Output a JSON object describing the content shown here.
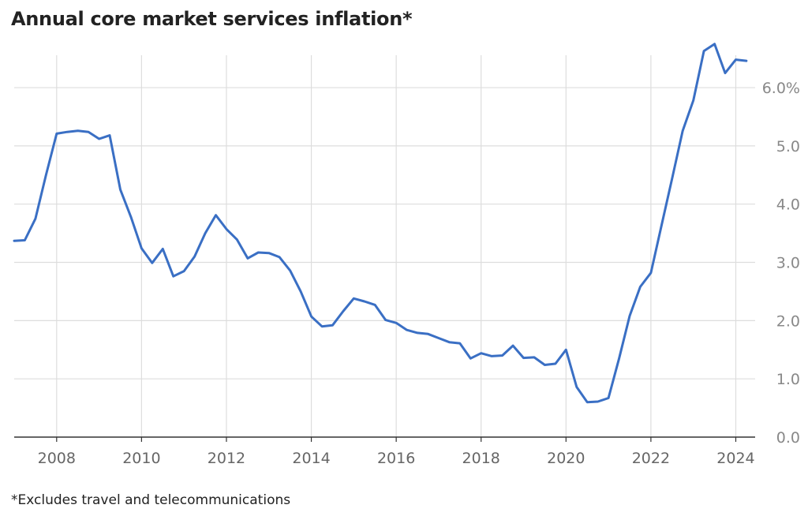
{
  "chart_data": {
    "type": "line",
    "title": "Annual core market services inflation*",
    "footnote": "*Excludes travel and telecommunications",
    "xlabel": "",
    "ylabel": "",
    "x_ticks": [
      "2008",
      "2010",
      "2012",
      "2014",
      "2016",
      "2018",
      "2020",
      "2022",
      "2024"
    ],
    "y_ticks": [
      "0.0",
      "1.0",
      "2.0",
      "3.0",
      "4.0",
      "5.0",
      "6.0%"
    ],
    "y_tick_values": [
      0,
      1,
      2,
      3,
      4,
      5,
      6
    ],
    "xlim": [
      2007.0,
      2024.4
    ],
    "ylim": [
      0,
      6.8
    ],
    "grid": true,
    "line_color": "#3a6fc4",
    "series": [
      {
        "x": [
          2007.0,
          2007.25,
          2007.5,
          2007.75,
          2008.0,
          2008.25,
          2008.5,
          2008.75,
          2009.0,
          2009.25,
          2009.5,
          2009.75,
          2010.0,
          2010.25,
          2010.5,
          2010.75,
          2011.0,
          2011.25,
          2011.5,
          2011.75,
          2012.0,
          2012.25,
          2012.5,
          2012.75,
          2013.0,
          2013.25,
          2013.5,
          2013.75,
          2014.0,
          2014.25,
          2014.5,
          2014.75,
          2015.0,
          2015.25,
          2015.5,
          2015.75,
          2016.0,
          2016.25,
          2016.5,
          2016.75,
          2017.0,
          2017.25,
          2017.5,
          2017.75,
          2018.0,
          2018.25,
          2018.5,
          2018.75,
          2019.0,
          2019.25,
          2019.5,
          2019.75,
          2020.0,
          2020.25,
          2020.5,
          2020.75,
          2021.0,
          2021.25,
          2021.5,
          2021.75,
          2022.0,
          2022.25,
          2022.5,
          2022.75,
          2023.0,
          2023.25,
          2023.5,
          2023.75,
          2024.0,
          2024.25
        ],
        "values": [
          3.37,
          3.38,
          3.75,
          4.5,
          5.21,
          5.24,
          5.26,
          5.24,
          5.12,
          5.18,
          4.25,
          3.78,
          3.24,
          2.99,
          3.23,
          2.76,
          2.85,
          3.1,
          3.5,
          3.81,
          3.57,
          3.39,
          3.07,
          3.17,
          3.16,
          3.09,
          2.86,
          2.5,
          2.07,
          1.9,
          1.92,
          2.16,
          2.38,
          2.33,
          2.27,
          2.01,
          1.96,
          1.84,
          1.79,
          1.77,
          1.7,
          1.63,
          1.61,
          1.35,
          1.44,
          1.39,
          1.4,
          1.57,
          1.36,
          1.37,
          1.24,
          1.26,
          1.5,
          0.86,
          0.6,
          0.61,
          0.67,
          1.35,
          2.08,
          2.58,
          2.82,
          3.63,
          4.44,
          5.26,
          5.78,
          6.63,
          6.75,
          6.25,
          6.48,
          6.46
        ]
      }
    ]
  }
}
